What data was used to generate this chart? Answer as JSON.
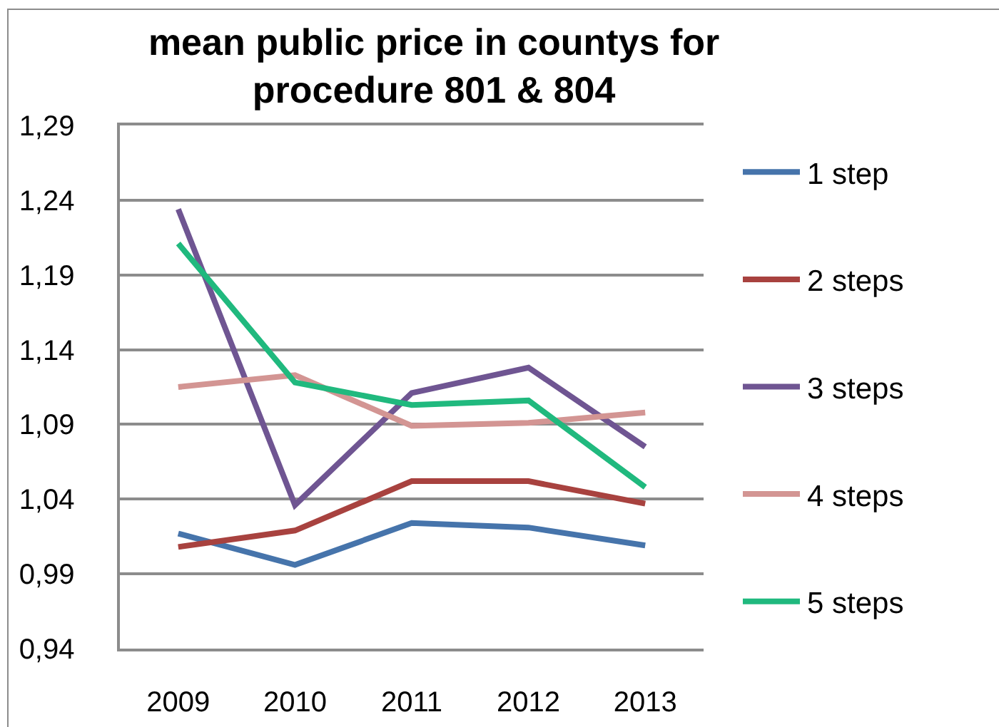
{
  "chart_data": {
    "type": "line",
    "title": "mean public price in countys for procedure 801 & 804",
    "categories": [
      "2009",
      "2010",
      "2011",
      "2012",
      "2013"
    ],
    "series": [
      {
        "name": "1 step",
        "color": "#4674ab",
        "values": [
          1.017,
          0.996,
          1.024,
          1.021,
          1.009
        ]
      },
      {
        "name": "2 steps",
        "color": "#a8423f",
        "values": [
          1.008,
          1.019,
          1.052,
          1.052,
          1.037
        ]
      },
      {
        "name": "3 steps",
        "color": "#6f5592",
        "values": [
          1.234,
          1.036,
          1.111,
          1.128,
          1.075
        ]
      },
      {
        "name": "4 steps",
        "color": "#d39593",
        "values": [
          1.115,
          1.123,
          1.089,
          1.091,
          1.098
        ]
      },
      {
        "name": "5 steps",
        "color": "#20b97e",
        "values": [
          1.211,
          1.118,
          1.103,
          1.106,
          1.048
        ]
      }
    ],
    "ylim": [
      0.94,
      1.29
    ],
    "yticks": [
      {
        "value": 0.94,
        "label": "0,94"
      },
      {
        "value": 0.99,
        "label": "0,99"
      },
      {
        "value": 1.04,
        "label": "1,04"
      },
      {
        "value": 1.09,
        "label": "1,09"
      },
      {
        "value": 1.14,
        "label": "1,14"
      },
      {
        "value": 1.19,
        "label": "1,19"
      },
      {
        "value": 1.24,
        "label": "1,24"
      },
      {
        "value": 1.29,
        "label": "1,29"
      }
    ],
    "grid": "y",
    "legend": "right",
    "marker": "none",
    "line_style": "solid"
  }
}
